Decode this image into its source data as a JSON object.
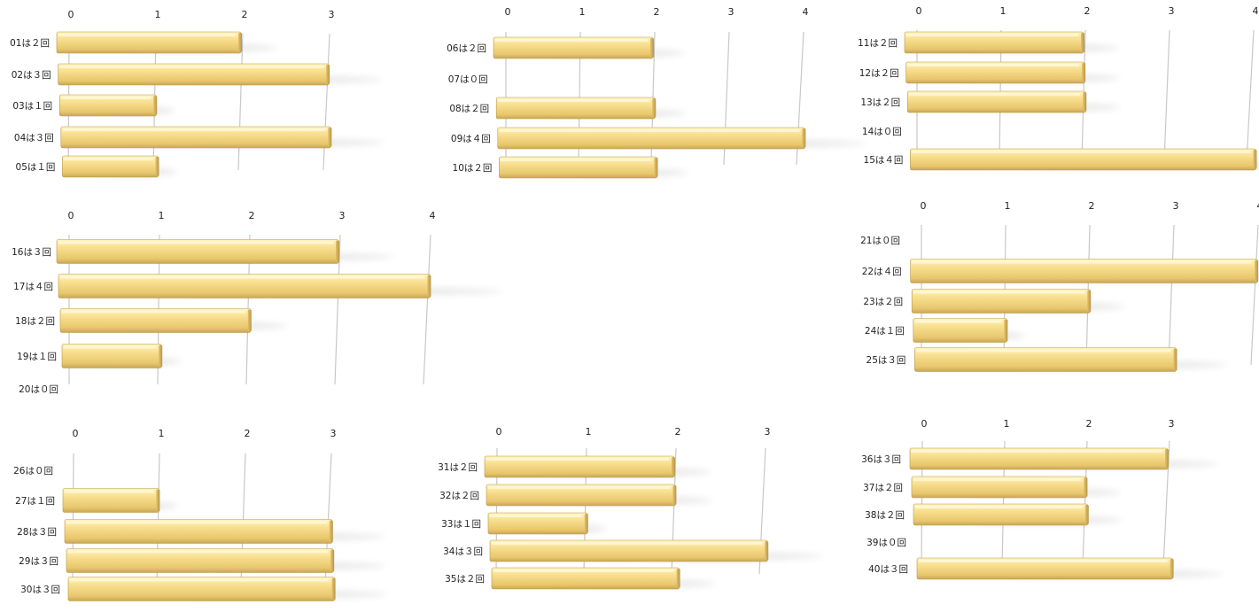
{
  "colors": {
    "bar_top": "#fff2b6",
    "bar_mid": "#f6dc8c",
    "bar_bottom": "#cfae5a",
    "bar_edge": "#b9984a",
    "gridline": "#c8c8c8",
    "text": "#222222"
  },
  "chart_data": [
    {
      "type": "bar",
      "orientation": "horizontal",
      "xlim": [
        0,
        3
      ],
      "ticks": [
        "0",
        "1",
        "2",
        "3"
      ],
      "categories": [
        "01は２回",
        "02は３回",
        "03は１回",
        "04は３回",
        "05は１回"
      ],
      "values": [
        2,
        3,
        1,
        3,
        1
      ]
    },
    {
      "type": "bar",
      "orientation": "horizontal",
      "xlim": [
        0,
        4
      ],
      "ticks": [
        "0",
        "1",
        "2",
        "3",
        "4"
      ],
      "categories": [
        "06は２回",
        "07は０回",
        "08は２回",
        "09は４回",
        "10は２回"
      ],
      "values": [
        2,
        0,
        2,
        4,
        2
      ]
    },
    {
      "type": "bar",
      "orientation": "horizontal",
      "xlim": [
        0,
        4
      ],
      "ticks": [
        "0",
        "1",
        "2",
        "3",
        "4"
      ],
      "categories": [
        "11は２回",
        "12は２回",
        "13は２回",
        "14は０回",
        "15は４回"
      ],
      "values": [
        2,
        2,
        2,
        0,
        4
      ]
    },
    {
      "type": "bar",
      "orientation": "horizontal",
      "xlim": [
        0,
        4
      ],
      "ticks": [
        "0",
        "1",
        "2",
        "3",
        "4"
      ],
      "categories": [
        "16は３回",
        "17は４回",
        "18は２回",
        "19は１回",
        "20は０回"
      ],
      "values": [
        3,
        4,
        2,
        1,
        0
      ]
    },
    {
      "type": "bar",
      "orientation": "horizontal",
      "xlim": [
        0,
        4
      ],
      "ticks": [
        "0",
        "1",
        "2",
        "3",
        "4"
      ],
      "categories": [
        "21は０回",
        "22は４回",
        "23は２回",
        "24は１回",
        "25は３回"
      ],
      "values": [
        0,
        4,
        2,
        1,
        3
      ]
    },
    {
      "type": "bar",
      "orientation": "horizontal",
      "xlim": [
        0,
        3
      ],
      "ticks": [
        "0",
        "1",
        "2",
        "3"
      ],
      "categories": [
        "26は０回",
        "27は１回",
        "28は３回",
        "29は３回",
        "30は３回"
      ],
      "values": [
        0,
        1,
        3,
        3,
        3
      ]
    },
    {
      "type": "bar",
      "orientation": "horizontal",
      "xlim": [
        0,
        3
      ],
      "ticks": [
        "0",
        "1",
        "2",
        "3"
      ],
      "categories": [
        "31は２回",
        "32は２回",
        "33は１回",
        "34は３回",
        "35は２回"
      ],
      "values": [
        2,
        2,
        1,
        3,
        2
      ]
    },
    {
      "type": "bar",
      "orientation": "horizontal",
      "xlim": [
        0,
        3
      ],
      "ticks": [
        "0",
        "1",
        "2",
        "3"
      ],
      "categories": [
        "36は３回",
        "37は２回",
        "38は２回",
        "39は０回",
        "40は３回"
      ],
      "values": [
        3,
        2,
        2,
        0,
        3
      ]
    }
  ]
}
